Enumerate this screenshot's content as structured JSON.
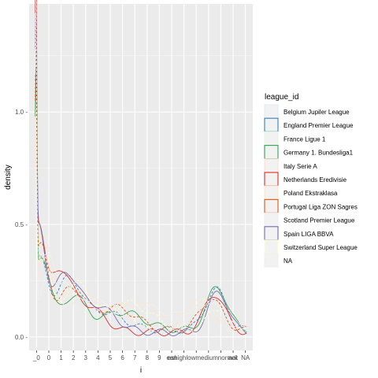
{
  "chart_data": {
    "type": "line",
    "geom": "density",
    "xlabel": "i",
    "ylabel": "density",
    "x_categories": [
      "_0",
      "0",
      "1",
      "2",
      "3",
      "4",
      "5",
      "6",
      "7",
      "8",
      "9",
      "ean",
      "eshigh",
      "ow",
      "edium",
      "ormal",
      "ack",
      "NA"
    ],
    "x_tick_labels": [
      "_0",
      "0",
      "1",
      "2",
      "3",
      "4",
      "5",
      "6",
      "7",
      "8",
      "9",
      "ean",
      "eshighlowmediumnormal",
      "ack",
      "NA"
    ],
    "y_ticks": [
      0.0,
      0.5,
      1.0
    ],
    "y_tick_labels": [
      "0.0 -",
      "0.5 -",
      "1.0 -"
    ],
    "ylim": [
      -0.06,
      1.48
    ],
    "grid": true,
    "legend_position": "right",
    "legend": {
      "title": "league_id",
      "entries": [
        {
          "name": "Belgium Jupiler League",
          "color": "#deebf7"
        },
        {
          "name": "England Premier League",
          "color": "#3182bd"
        },
        {
          "name": "France Ligue 1",
          "color": "#e5f5e0"
        },
        {
          "name": "Germany 1. Bundesliga1",
          "color": "#31a354"
        },
        {
          "name": "Italy Serie A",
          "color": "#fee0d2"
        },
        {
          "name": "Netherlands Eredivisie",
          "color": "#de2d26"
        },
        {
          "name": "Poland Ekstraklasa",
          "color": "#fee6ce"
        },
        {
          "name": "Portugal Liga ZON Sagres",
          "color": "#e6550d"
        },
        {
          "name": "Scotland Premier League",
          "color": "#efedf5"
        },
        {
          "name": "Spain LIGA BBVA",
          "color": "#756bb1"
        },
        {
          "name": "Switzerland Super League",
          "color": "#ffffcc"
        },
        {
          "name": "NA",
          "color": "#f0f0f0"
        }
      ]
    },
    "series": [
      {
        "name": "Belgium Jupiler League",
        "color": "#deebf7",
        "spikes": [
          [
            -0.05,
            1.25,
            0.07
          ],
          [
            0.2,
            0.42,
            0.55
          ],
          [
            2.2,
            0.18,
            0.9
          ],
          [
            4.5,
            0.1,
            1.6
          ],
          [
            14.4,
            0.15,
            0.9
          ]
        ],
        "baseline": 0.02
      },
      {
        "name": "England Premier League",
        "color": "#3182bd",
        "spikes": [
          [
            -0.05,
            1.1,
            0.07
          ],
          [
            0.3,
            0.3,
            0.6
          ],
          [
            2.6,
            0.22,
            1.0
          ],
          [
            5.5,
            0.08,
            1.6
          ],
          [
            14.6,
            0.18,
            0.85
          ]
        ],
        "baseline": 0.03
      },
      {
        "name": "France Ligue 1",
        "color": "#e5f5e0",
        "spikes": [
          [
            -0.05,
            1.0,
            0.07
          ],
          [
            0.5,
            0.38,
            0.6
          ],
          [
            2.0,
            0.2,
            1.0
          ],
          [
            6.0,
            0.1,
            1.8
          ],
          [
            13.8,
            0.16,
            0.9
          ]
        ],
        "baseline": 0.02
      },
      {
        "name": "Germany 1. Bundesliga1",
        "color": "#31a354",
        "spikes": [
          [
            -0.05,
            0.9,
            0.07
          ],
          [
            0.4,
            0.33,
            0.65
          ],
          [
            3.0,
            0.15,
            1.0
          ],
          [
            7.0,
            0.08,
            1.7
          ],
          [
            14.7,
            0.19,
            0.85
          ]
        ],
        "baseline": 0.03
      },
      {
        "name": "Italy Serie A",
        "color": "#fee0d2",
        "spikes": [
          [
            -0.05,
            0.8,
            0.07
          ],
          [
            0.6,
            0.35,
            0.55
          ],
          [
            2.4,
            0.2,
            0.9
          ],
          [
            5.0,
            0.12,
            1.5
          ],
          [
            13.5,
            0.12,
            1.0
          ]
        ],
        "baseline": 0.04
      },
      {
        "name": "Netherlands Eredivisie",
        "color": "#de2d26",
        "spikes": [
          [
            -0.05,
            1.4,
            0.06
          ],
          [
            0.1,
            0.45,
            0.5
          ],
          [
            1.8,
            0.25,
            0.9
          ],
          [
            4.0,
            0.12,
            1.4
          ],
          [
            14.5,
            0.17,
            0.85
          ]
        ],
        "baseline": 0.02
      },
      {
        "name": "Poland Ekstraklasa",
        "color": "#fee6ce",
        "spikes": [
          [
            -0.05,
            0.75,
            0.07
          ],
          [
            0.7,
            0.28,
            0.6
          ],
          [
            3.4,
            0.16,
            1.2
          ],
          [
            8.0,
            0.1,
            1.8
          ],
          [
            13.0,
            0.1,
            1.0
          ]
        ],
        "baseline": 0.05
      },
      {
        "name": "Portugal Liga ZON Sagres",
        "color": "#e6550d",
        "spikes": [
          [
            -0.05,
            0.95,
            0.07
          ],
          [
            0.35,
            0.36,
            0.6
          ],
          [
            2.8,
            0.18,
            1.1
          ],
          [
            6.5,
            0.1,
            1.6
          ],
          [
            14.2,
            0.14,
            0.9
          ]
        ],
        "baseline": 0.03
      },
      {
        "name": "Scotland Premier League",
        "color": "#efedf5",
        "spikes": [
          [
            -0.05,
            0.7,
            0.07
          ],
          [
            0.8,
            0.3,
            0.6
          ],
          [
            2.5,
            0.18,
            1.0
          ],
          [
            5.8,
            0.1,
            1.5
          ],
          [
            14.0,
            0.12,
            0.95
          ]
        ],
        "baseline": 0.04
      },
      {
        "name": "Spain LIGA BBVA",
        "color": "#756bb1",
        "spikes": [
          [
            -0.05,
            1.05,
            0.07
          ],
          [
            0.15,
            0.47,
            0.55
          ],
          [
            2.3,
            0.24,
            0.95
          ],
          [
            4.8,
            0.12,
            1.5
          ],
          [
            14.8,
            0.18,
            0.8
          ]
        ],
        "baseline": 0.02
      },
      {
        "name": "Switzerland Super League",
        "color": "#ffffcc",
        "spikes": [
          [
            -0.05,
            1.3,
            0.06
          ],
          [
            0.45,
            0.34,
            0.6
          ],
          [
            3.2,
            0.2,
            1.2
          ],
          [
            7.5,
            0.12,
            1.8
          ],
          [
            15.0,
            0.1,
            1.0
          ]
        ],
        "baseline": 0.03
      },
      {
        "name": "NA",
        "color": "#f0f0f0",
        "spikes": [
          [
            -0.05,
            0.6,
            0.08
          ],
          [
            1.0,
            0.22,
            0.7
          ],
          [
            4.0,
            0.12,
            1.5
          ],
          [
            9.0,
            0.08,
            2.0
          ],
          [
            13.6,
            0.1,
            1.0
          ]
        ],
        "baseline": 0.05
      }
    ]
  }
}
